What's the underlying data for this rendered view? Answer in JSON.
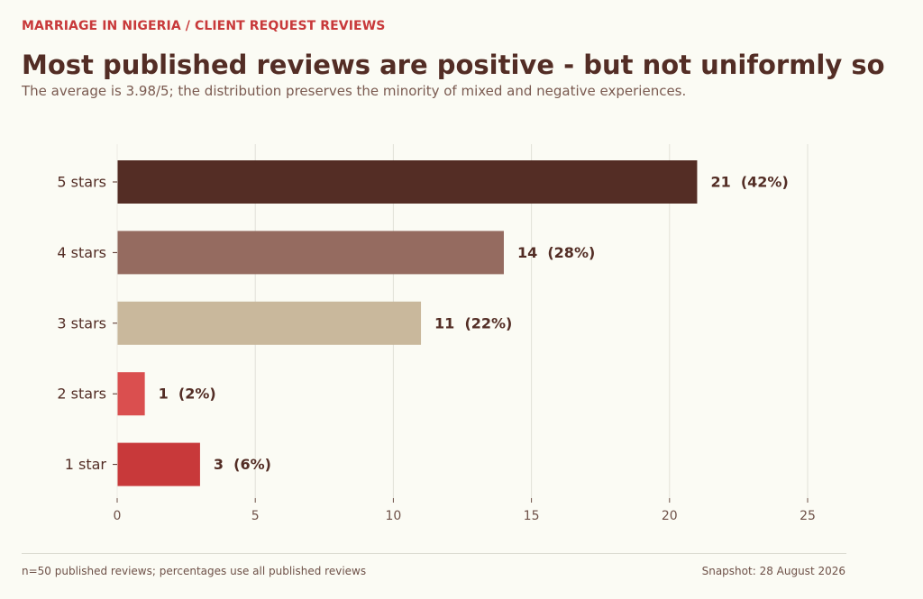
{
  "header": {
    "kicker": "MARRIAGE IN NIGERIA  /  CLIENT REQUEST REVIEWS",
    "title": "Most published reviews are positive - but not uniformly so",
    "subtitle": "The average is 3.98/5; the distribution preserves the minority of mixed and negative experiences."
  },
  "footer": {
    "note": "n=50 published reviews; percentages use all published reviews",
    "snapshot": "Snapshot: 28 August 2026"
  },
  "chart_data": {
    "type": "bar",
    "orientation": "horizontal",
    "categories": [
      "5 stars",
      "4 stars",
      "3 stars",
      "2 stars",
      "1 star"
    ],
    "values": [
      21,
      14,
      11,
      1,
      3
    ],
    "data_labels": [
      "21  (42%)",
      "14  (28%)",
      "11  (22%)",
      "1  (2%)",
      "3  (6%)"
    ],
    "colors": [
      "#542d25",
      "#956b60",
      "#c9b89c",
      "#da4f4f",
      "#c8393a"
    ],
    "xlim": [
      0,
      25
    ],
    "xticks": [
      0,
      5,
      10,
      15,
      20,
      25
    ],
    "grid": true,
    "label_color": "#532d25",
    "tick_color": "#6e5148",
    "grid_color": "#e2e1d8"
  }
}
